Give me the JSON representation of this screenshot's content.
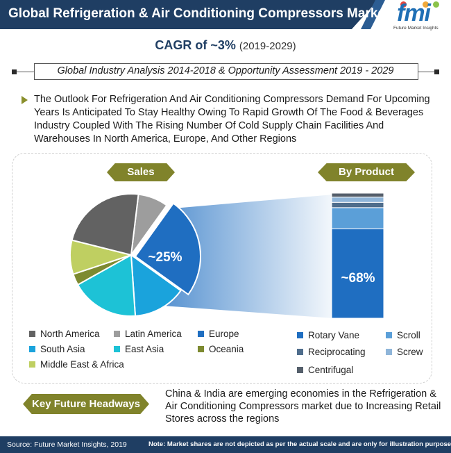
{
  "header": {
    "title": "Global Refrigeration & Air Conditioning Compressors Market"
  },
  "logo": {
    "text": "fmi",
    "subtitle": "Future Market Insights",
    "dot_colors": [
      "#e6473f",
      "#f1a93b",
      "#8bc34a",
      "#3a8fd6"
    ]
  },
  "cagr": {
    "label": "CAGR of ~3%",
    "period": "(2019-2029)"
  },
  "banner": {
    "text": "Global Industry Analysis 2014-2018 & Opportunity Assessment 2019 - 2029"
  },
  "outlook": {
    "text": "The Outlook For Refrigeration And Air Conditioning Compressors Demand For Upcoming Years Is Anticipated To Stay Healthy Owing To Rapid Growth Of The Food & Beverages Industry Coupled With The Rising Number Of Cold Supply Chain Facilities And Warehouses In North America, Europe, And Other Regions"
  },
  "chart_data": [
    {
      "type": "pie",
      "title": "Sales",
      "highlighted_label": "~25%",
      "highlighted_category": "Europe",
      "categories": [
        "North America",
        "Latin America",
        "Europe",
        "South Asia",
        "East Asia",
        "Oceania",
        "Middle East & Africa"
      ],
      "values": [
        23,
        8,
        25,
        14,
        18,
        3,
        9
      ],
      "colors": [
        "#626262",
        "#9d9d9d",
        "#1f6ec1",
        "#1aa3dc",
        "#1dc2d6",
        "#7d8a30",
        "#bfcf61"
      ]
    },
    {
      "type": "bar",
      "stacked": true,
      "title": "By Product",
      "highlighted_label": "~68%",
      "categories": [
        "Rotary Vane",
        "Scroll",
        "Reciprocating",
        "Screw",
        "Centrifugal"
      ],
      "values": [
        68,
        16,
        4,
        4,
        3
      ],
      "colors": [
        "#1f6ec1",
        "#5b9fd8",
        "#4f6d8c",
        "#8fb5d9",
        "#555f6b"
      ]
    }
  ],
  "headways": {
    "label": "Key Future Headways",
    "text": "China & India are emerging economies in the Refrigeration & Air Conditioning Compressors market due to Increasing Retail Stores across the regions"
  },
  "footer": {
    "source": "Source: Future Market Insights, 2019",
    "note": "Note: Market shares are not depicted as per the actual scale and are only for illustration purposes."
  }
}
